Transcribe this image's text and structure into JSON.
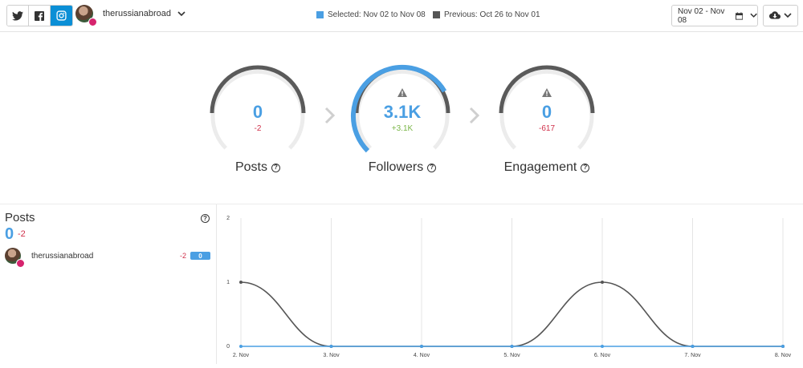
{
  "header": {
    "networks": [
      {
        "name": "twitter",
        "icon": "twitter-icon",
        "active": false
      },
      {
        "name": "facebook",
        "icon": "facebook-icon",
        "active": false
      },
      {
        "name": "instagram",
        "icon": "instagram-icon",
        "active": true
      }
    ],
    "account_name": "therussianabroad",
    "legend_selected": "Selected: Nov 02 to Nov 08",
    "legend_previous": "Previous: Oct 26 to Nov 01",
    "legend_selected_color": "#4a9fe3",
    "legend_previous_color": "#555555",
    "date_range": "Nov 02 - Nov 08"
  },
  "gauges": [
    {
      "label": "Posts",
      "value": "0",
      "delta": "-2",
      "delta_color": "#d0304a",
      "fill": 0,
      "warning": false
    },
    {
      "label": "Followers",
      "value": "3.1K",
      "delta": "+3.1K",
      "delta_color": "#7ab648",
      "fill": 1,
      "warning": true
    },
    {
      "label": "Engagement",
      "value": "0",
      "delta": "-617",
      "delta_color": "#d0304a",
      "fill": 0,
      "warning": true
    }
  ],
  "posts_panel": {
    "title": "Posts",
    "value": "0",
    "delta": "-2",
    "rows": [
      {
        "name": "therussianabroad",
        "delta": "-2",
        "value": "0"
      }
    ]
  },
  "chart_data": {
    "type": "line",
    "categories": [
      "2. Nov",
      "3. Nov",
      "4. Nov",
      "5. Nov",
      "6. Nov",
      "7. Nov",
      "8. Nov"
    ],
    "y_ticks": [
      "0",
      "1",
      "2"
    ],
    "ylim": [
      0,
      2
    ],
    "series": [
      {
        "values": [
          1,
          0,
          0,
          0,
          1,
          0,
          0
        ],
        "color": "#555555"
      },
      {
        "values": [
          0,
          0,
          0,
          0,
          0,
          0,
          0
        ],
        "color": "#4a9fe3"
      }
    ]
  }
}
